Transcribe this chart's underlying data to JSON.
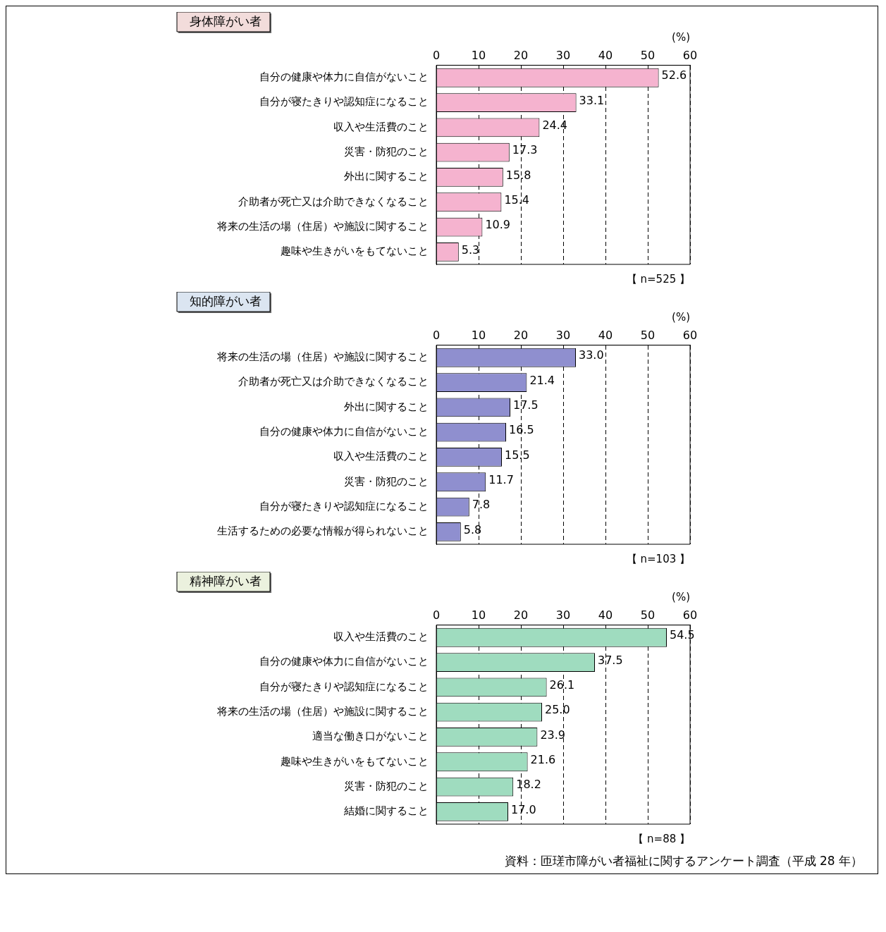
{
  "chart_data": [
    {
      "type": "bar",
      "orientation": "horizontal",
      "title": "身体障がい者",
      "xlabel": "(%)",
      "categories": [
        "自分の健康や体力に自信がないこと",
        "自分が寝たきりや認知症になること",
        "収入や生活費のこと",
        "災害・防犯のこと",
        "外出に関すること",
        "介助者が死亡又は介助できなくなること",
        "将来の生活の場（住居）や施設に関すること",
        "趣味や生きがいをもてないこと"
      ],
      "values": [
        52.6,
        33.1,
        24.4,
        17.3,
        15.8,
        15.4,
        10.9,
        5.3
      ],
      "value_labels": [
        "52.6",
        "33.1",
        "24.4",
        "17.3",
        "15.8",
        "15.4",
        "10.9",
        "5.3"
      ],
      "color": "#f5b3cf",
      "xlim": [
        0,
        60
      ],
      "xticks": [
        0,
        10,
        20,
        30,
        40,
        50,
        60
      ],
      "grid": "x",
      "annotations": [
        "【 n=525 】"
      ]
    },
    {
      "type": "bar",
      "orientation": "horizontal",
      "title": "知的障がい者",
      "xlabel": "(%)",
      "categories": [
        "将来の生活の場（住居）や施設に関すること",
        "介助者が死亡又は介助できなくなること",
        "外出に関すること",
        "自分の健康や体力に自信がないこと",
        "収入や生活費のこと",
        "災害・防犯のこと",
        "自分が寝たきりや認知症になること",
        "生活するための必要な情報が得られないこと"
      ],
      "values": [
        33.0,
        21.4,
        17.5,
        16.5,
        15.5,
        11.7,
        7.8,
        5.8
      ],
      "value_labels": [
        "33.0",
        "21.4",
        "17.5",
        "16.5",
        "15.5",
        "11.7",
        "7.8",
        "5.8"
      ],
      "color": "#8f8fcf",
      "xlim": [
        0,
        60
      ],
      "xticks": [
        0,
        10,
        20,
        30,
        40,
        50,
        60
      ],
      "grid": "x",
      "annotations": [
        "【 n=103 】"
      ]
    },
    {
      "type": "bar",
      "orientation": "horizontal",
      "title": "精神障がい者",
      "xlabel": "(%)",
      "categories": [
        "収入や生活費のこと",
        "自分の健康や体力に自信がないこと",
        "自分が寝たきりや認知症になること",
        "将来の生活の場（住居）や施設に関すること",
        "適当な働き口がないこと",
        "趣味や生きがいをもてないこと",
        "災害・防犯のこと",
        "結婚に関すること"
      ],
      "values": [
        54.5,
        37.5,
        26.1,
        25.0,
        23.9,
        21.6,
        18.2,
        17.0
      ],
      "value_labels": [
        "54.5",
        "37.5",
        "26.1",
        "25.0",
        "23.9",
        "21.6",
        "18.2",
        "17.0"
      ],
      "color": "#9fdcbf",
      "xlim": [
        0,
        60
      ],
      "xticks": [
        0,
        10,
        20,
        30,
        40,
        50,
        60
      ],
      "grid": "x",
      "annotations": [
        "【 n=88 】",
        "資料：匝瑳市障がい者福祉に関するアンケート調査（平成 28 年）"
      ]
    }
  ]
}
